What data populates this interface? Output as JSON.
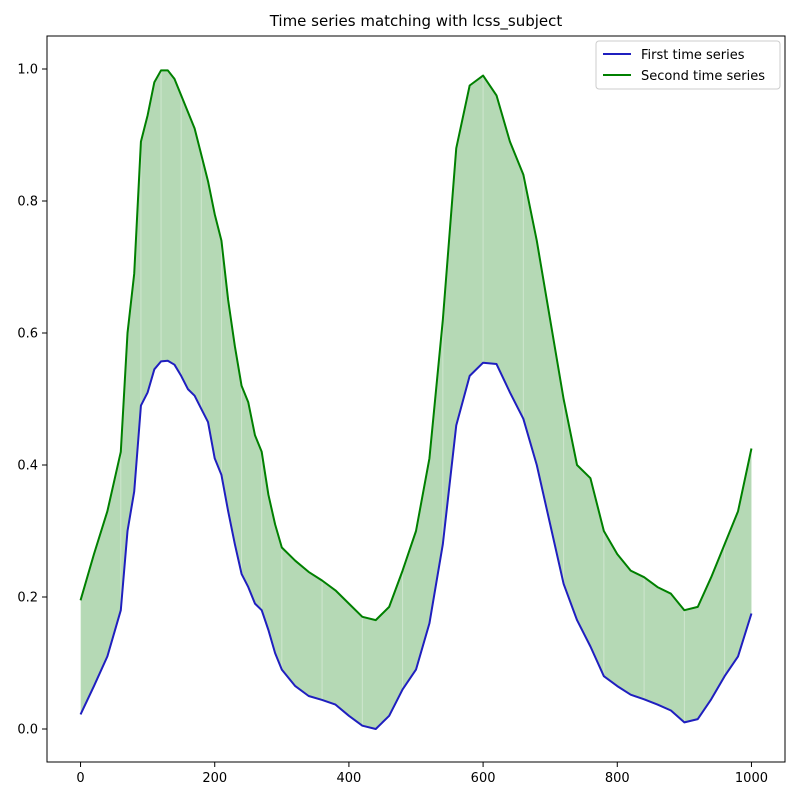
{
  "chart_data": {
    "type": "line",
    "title": "Time series matching with lcss_subject",
    "xlabel": "",
    "ylabel": "",
    "xlim": [
      -50,
      1050
    ],
    "ylim": [
      -0.05,
      1.05
    ],
    "x_ticks": [
      0,
      200,
      400,
      600,
      800,
      1000
    ],
    "y_ticks": [
      0.0,
      0.2,
      0.4,
      0.6,
      0.8,
      1.0
    ],
    "x_tick_labels": [
      "0",
      "200",
      "400",
      "600",
      "800",
      "1000"
    ],
    "y_tick_labels": [
      "0.0",
      "0.2",
      "0.4",
      "0.6",
      "0.8",
      "1.0"
    ],
    "grid": false,
    "legend_position": "top-right",
    "fill_between": {
      "color": "#b5d9b5",
      "description": "area between series shaded"
    },
    "x": [
      0,
      20,
      40,
      60,
      70,
      80,
      90,
      100,
      110,
      120,
      130,
      140,
      150,
      160,
      170,
      180,
      190,
      200,
      210,
      220,
      230,
      240,
      250,
      260,
      270,
      280,
      290,
      300,
      320,
      340,
      360,
      380,
      400,
      420,
      440,
      460,
      480,
      500,
      520,
      540,
      560,
      580,
      600,
      620,
      640,
      660,
      680,
      700,
      720,
      740,
      760,
      780,
      800,
      820,
      840,
      860,
      880,
      900,
      920,
      940,
      960,
      980,
      1000
    ],
    "series": [
      {
        "name": "First time series",
        "color": "#1f1fbf",
        "values": [
          0.022,
          0.065,
          0.11,
          0.18,
          0.3,
          0.36,
          0.49,
          0.51,
          0.545,
          0.557,
          0.558,
          0.552,
          0.535,
          0.515,
          0.505,
          0.485,
          0.465,
          0.41,
          0.385,
          0.33,
          0.28,
          0.235,
          0.215,
          0.19,
          0.18,
          0.15,
          0.115,
          0.09,
          0.065,
          0.05,
          0.044,
          0.037,
          0.02,
          0.005,
          0.0,
          0.02,
          0.06,
          0.09,
          0.16,
          0.28,
          0.46,
          0.535,
          0.555,
          0.553,
          0.51,
          0.47,
          0.4,
          0.31,
          0.22,
          0.165,
          0.125,
          0.08,
          0.065,
          0.052,
          0.045,
          0.037,
          0.028,
          0.01,
          0.015,
          0.045,
          0.08,
          0.11,
          0.175
        ]
      },
      {
        "name": "Second time series",
        "color": "#008000",
        "values": [
          0.195,
          0.265,
          0.33,
          0.42,
          0.6,
          0.69,
          0.89,
          0.93,
          0.98,
          0.998,
          0.998,
          0.985,
          0.96,
          0.935,
          0.91,
          0.87,
          0.83,
          0.78,
          0.74,
          0.65,
          0.58,
          0.52,
          0.495,
          0.445,
          0.42,
          0.355,
          0.31,
          0.275,
          0.255,
          0.238,
          0.225,
          0.21,
          0.19,
          0.17,
          0.165,
          0.185,
          0.24,
          0.3,
          0.41,
          0.62,
          0.88,
          0.975,
          0.99,
          0.96,
          0.89,
          0.84,
          0.74,
          0.62,
          0.5,
          0.4,
          0.38,
          0.3,
          0.265,
          0.24,
          0.23,
          0.215,
          0.205,
          0.18,
          0.185,
          0.23,
          0.28,
          0.33,
          0.425
        ]
      }
    ]
  }
}
